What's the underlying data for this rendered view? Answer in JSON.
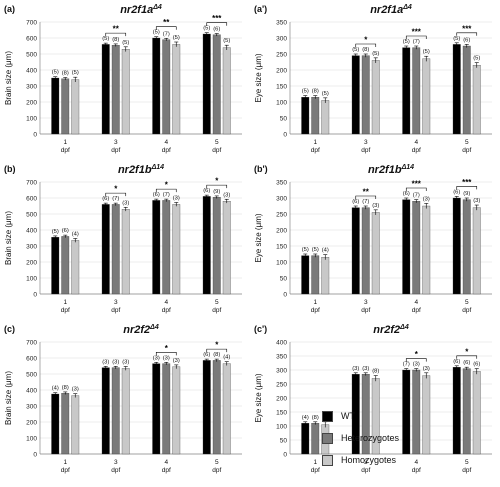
{
  "chart_data": [
    {
      "type": "bar",
      "panel_label": "(a)",
      "title_gene": "nr2f1a",
      "title_sup": "Δ4",
      "ylabel": "Brain size (μm)",
      "ylim": [
        0,
        700
      ],
      "yticks": [
        0,
        100,
        200,
        300,
        400,
        500,
        600,
        700
      ],
      "categories": [
        [
          "1",
          "dpf"
        ],
        [
          "3",
          "dpf"
        ],
        [
          "4",
          "dpf"
        ],
        [
          "5",
          "dpf"
        ]
      ],
      "series": [
        {
          "name": "WT",
          "color": "#000000",
          "values": [
            350,
            560,
            600,
            625
          ],
          "err": [
            8,
            8,
            8,
            8
          ],
          "n": [
            "(5)",
            "(5)",
            "(5)",
            "(5)"
          ]
        },
        {
          "name": "Heterozygotes",
          "color": "#7a7a7a",
          "values": [
            345,
            555,
            590,
            620
          ],
          "err": [
            8,
            8,
            8,
            8
          ],
          "n": [
            "(8)",
            "(8)",
            "(7)",
            "(6)"
          ]
        },
        {
          "name": "Homozygotes",
          "color": "#c8c8c8",
          "values": [
            340,
            530,
            560,
            540
          ],
          "err": [
            15,
            15,
            15,
            15
          ],
          "n": [
            "(5)",
            "(5)",
            "(5)",
            "(5)"
          ]
        }
      ],
      "significance": [
        null,
        "**",
        "**",
        "***"
      ]
    },
    {
      "type": "bar",
      "panel_label": "(a')",
      "title_gene": "nr2f1a",
      "title_sup": "Δ4",
      "ylabel": "Eye size (μm)",
      "ylim": [
        0,
        350
      ],
      "yticks": [
        0,
        50,
        100,
        150,
        200,
        250,
        300,
        350
      ],
      "categories": [
        [
          "1",
          "dpf"
        ],
        [
          "3",
          "dpf"
        ],
        [
          "4",
          "dpf"
        ],
        [
          "5",
          "dpf"
        ]
      ],
      "series": [
        {
          "name": "WT",
          "color": "#000000",
          "values": [
            115,
            245,
            270,
            280
          ],
          "err": [
            5,
            5,
            5,
            5
          ],
          "n": [
            "(5)",
            "(5)",
            "(5)",
            "(5)"
          ]
        },
        {
          "name": "Heterozygotes",
          "color": "#7a7a7a",
          "values": [
            115,
            245,
            270,
            275
          ],
          "err": [
            5,
            5,
            5,
            5
          ],
          "n": [
            "(8)",
            "(8)",
            "(7)",
            "(6)"
          ]
        },
        {
          "name": "Homozygotes",
          "color": "#c8c8c8",
          "values": [
            105,
            230,
            235,
            215
          ],
          "err": [
            8,
            8,
            8,
            8
          ],
          "n": [
            "(5)",
            "(5)",
            "(5)",
            "(5)"
          ]
        }
      ],
      "significance": [
        null,
        "*",
        "***",
        "***"
      ]
    },
    {
      "type": "bar",
      "panel_label": "(b)",
      "title_gene": "nr2f1b",
      "title_sup": "Δ14",
      "ylabel": "Brain size (μm)",
      "ylim": [
        0,
        700
      ],
      "yticks": [
        0,
        100,
        200,
        300,
        400,
        500,
        600,
        700
      ],
      "categories": [
        [
          "1",
          "dpf"
        ],
        [
          "3",
          "dpf"
        ],
        [
          "4",
          "dpf"
        ],
        [
          "5",
          "dpf"
        ]
      ],
      "series": [
        {
          "name": "WT",
          "color": "#000000",
          "values": [
            355,
            560,
            585,
            610
          ],
          "err": [
            8,
            8,
            8,
            8
          ],
          "n": [
            "(5)",
            "(6)",
            "(6)",
            "(6)"
          ]
        },
        {
          "name": "Heterozygotes",
          "color": "#7a7a7a",
          "values": [
            360,
            560,
            585,
            605
          ],
          "err": [
            8,
            8,
            8,
            8
          ],
          "n": [
            "(6)",
            "(7)",
            "(7)",
            "(9)"
          ]
        },
        {
          "name": "Homozygotes",
          "color": "#c8c8c8",
          "values": [
            335,
            530,
            560,
            580
          ],
          "err": [
            12,
            12,
            12,
            12
          ],
          "n": [
            "(4)",
            "(3)",
            "(3)",
            "(3)"
          ]
        }
      ],
      "significance": [
        null,
        "*",
        "*",
        "*"
      ]
    },
    {
      "type": "bar",
      "panel_label": "(b')",
      "title_gene": "nr2f1b",
      "title_sup": "Δ14",
      "ylabel": "Eye size (μm)",
      "ylim": [
        0,
        350
      ],
      "yticks": [
        0,
        50,
        100,
        150,
        200,
        250,
        300,
        350
      ],
      "categories": [
        [
          "1",
          "dpf"
        ],
        [
          "3",
          "dpf"
        ],
        [
          "4",
          "dpf"
        ],
        [
          "5",
          "dpf"
        ]
      ],
      "series": [
        {
          "name": "WT",
          "color": "#000000",
          "values": [
            120,
            270,
            295,
            300
          ],
          "err": [
            5,
            5,
            5,
            5
          ],
          "n": [
            "(5)",
            "(6)",
            "(6)",
            "(6)"
          ]
        },
        {
          "name": "Heterozygotes",
          "color": "#7a7a7a",
          "values": [
            120,
            270,
            290,
            295
          ],
          "err": [
            5,
            5,
            5,
            5
          ],
          "n": [
            "(5)",
            "(7)",
            "(7)",
            "(9)"
          ]
        },
        {
          "name": "Homozygotes",
          "color": "#c8c8c8",
          "values": [
            115,
            255,
            275,
            270
          ],
          "err": [
            8,
            8,
            8,
            8
          ],
          "n": [
            "(4)",
            "(3)",
            "(3)",
            "(3)"
          ]
        }
      ],
      "significance": [
        null,
        "**",
        "***",
        "***"
      ]
    },
    {
      "type": "bar",
      "panel_label": "(c)",
      "title_gene": "nr2f2",
      "title_sup": "Δ4",
      "ylabel": "Brain size (μm)",
      "ylim": [
        0,
        700
      ],
      "yticks": [
        0,
        100,
        200,
        300,
        400,
        500,
        600,
        700
      ],
      "categories": [
        [
          "1",
          "dpf"
        ],
        [
          "3",
          "dpf"
        ],
        [
          "4",
          "dpf"
        ],
        [
          "5",
          "dpf"
        ]
      ],
      "series": [
        {
          "name": "WT",
          "color": "#000000",
          "values": [
            375,
            540,
            565,
            585
          ],
          "err": [
            8,
            8,
            8,
            8
          ],
          "n": [
            "(4)",
            "(3)",
            "(3)",
            "(6)"
          ]
        },
        {
          "name": "Heterozygotes",
          "color": "#7a7a7a",
          "values": [
            380,
            540,
            565,
            585
          ],
          "err": [
            8,
            8,
            8,
            8
          ],
          "n": [
            "(8)",
            "(3)",
            "(3)",
            "(8)"
          ]
        },
        {
          "name": "Homozygotes",
          "color": "#c8c8c8",
          "values": [
            365,
            535,
            545,
            565
          ],
          "err": [
            12,
            12,
            12,
            12
          ],
          "n": [
            "(3)",
            "(3)",
            "(3)",
            "(4)"
          ]
        }
      ],
      "significance": [
        null,
        null,
        "*",
        "*"
      ]
    },
    {
      "type": "bar",
      "panel_label": "(c')",
      "title_gene": "nr2f2",
      "title_sup": "Δ4",
      "ylabel": "Eye size (μm)",
      "ylim": [
        0,
        400
      ],
      "yticks": [
        0,
        50,
        100,
        150,
        200,
        250,
        300,
        350,
        400
      ],
      "categories": [
        [
          "1",
          "dpf"
        ],
        [
          "3",
          "dpf"
        ],
        [
          "4",
          "dpf"
        ],
        [
          "5",
          "dpf"
        ]
      ],
      "series": [
        {
          "name": "WT",
          "color": "#000000",
          "values": [
            110,
            285,
            300,
            310
          ],
          "err": [
            5,
            5,
            5,
            5
          ],
          "n": [
            "(4)",
            "(3)",
            "(7)",
            "(6)"
          ]
        },
        {
          "name": "Heterozygotes",
          "color": "#7a7a7a",
          "values": [
            110,
            285,
            300,
            305
          ],
          "err": [
            5,
            5,
            5,
            5
          ],
          "n": [
            "(8)",
            "(3)",
            "(3)",
            "(6)"
          ]
        },
        {
          "name": "Homozygotes",
          "color": "#c8c8c8",
          "values": [
            105,
            270,
            280,
            295
          ],
          "err": [
            10,
            10,
            10,
            10
          ],
          "n": [
            "(3)",
            "(8)",
            "(3)",
            "(6)"
          ]
        }
      ],
      "significance": [
        null,
        null,
        "*",
        "*"
      ]
    }
  ],
  "legend": [
    {
      "label": "WT",
      "color": "#000000"
    },
    {
      "label": "Heterozygotes",
      "color": "#7a7a7a"
    },
    {
      "label": "Homozygotes",
      "color": "#c8c8c8"
    }
  ]
}
